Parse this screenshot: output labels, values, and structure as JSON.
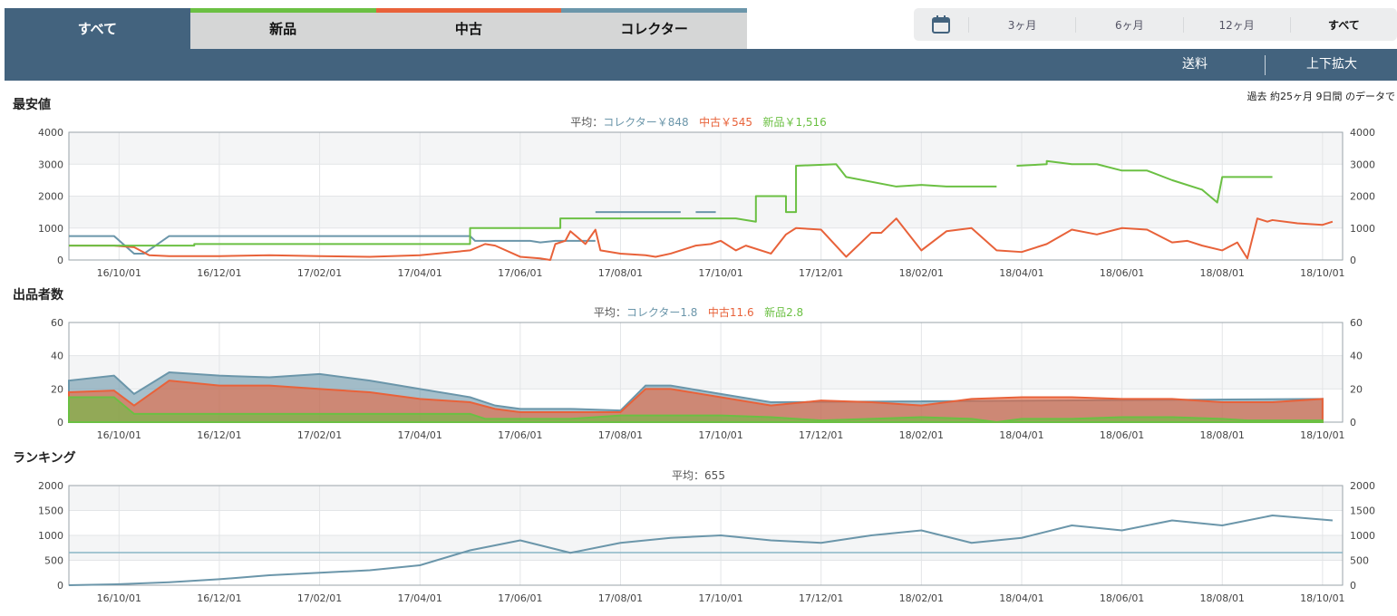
{
  "tabs": [
    {
      "label": "すべて",
      "color": ""
    },
    {
      "label": "新品",
      "color": "#6bc043"
    },
    {
      "label": "中古",
      "color": "#e8623a"
    },
    {
      "label": "コレクター",
      "color": "#6b96aa"
    }
  ],
  "range": {
    "options": [
      "3ヶ月",
      "6ヶ月",
      "12ヶ月",
      "すべて"
    ],
    "selected": "すべて",
    "icon": "calendar-icon"
  },
  "toolbar": {
    "shipping_label": "送料",
    "zoom_label": "上下拡大"
  },
  "period_note": "過去 約25ヶ月 9日間 のデータで",
  "colors": {
    "collector": "#6b96aa",
    "used": "#e8623a",
    "new": "#6bc043",
    "header": "#43637e"
  },
  "sections": {
    "price": {
      "title": "最安値",
      "avg_prefix": "平均：",
      "avg_collector": "コレクター￥848",
      "avg_used": "中古￥545",
      "avg_new": "新品￥1,516"
    },
    "sellers": {
      "title": "出品者数",
      "avg_prefix": "平均：",
      "avg_collector": "コレクター1.8",
      "avg_used": "中古11.6",
      "avg_new": "新品2.8"
    },
    "rank": {
      "title": "ランキング",
      "avg_text": "平均：655"
    }
  },
  "chart_data": [
    {
      "type": "line",
      "id": "price",
      "x_tick_labels": [
        "16/10/01",
        "16/12/01",
        "17/02/01",
        "17/04/01",
        "17/06/01",
        "17/08/01",
        "17/10/01",
        "17/12/01",
        "18/02/01",
        "18/04/01",
        "18/06/01",
        "18/08/01",
        "18/10/01"
      ],
      "ylim": [
        0,
        4000
      ],
      "yticks": [
        0,
        1000,
        2000,
        3000,
        4000
      ],
      "x_range": [
        -1,
        24.4
      ],
      "series": [
        {
          "name": "コレクター",
          "color": "#6b96aa",
          "x": [
            -1,
            -0.1,
            0.3,
            0.5,
            1,
            7,
            7.1,
            8.2,
            8.4,
            8.7,
            9.5,
            9.5
          ],
          "y": [
            750,
            750,
            200,
            200,
            750,
            750,
            600,
            600,
            550,
            600,
            600,
            null
          ]
        },
        {
          "name": "コレクター",
          "color": "#6b96aa",
          "x": [
            9.5,
            11.2
          ],
          "y": [
            1500,
            1500
          ]
        },
        {
          "name": "コレクター",
          "color": "#6b96aa",
          "x": [
            11.5,
            11.9
          ],
          "y": [
            1500,
            1500
          ]
        },
        {
          "name": "中古",
          "color": "#e8623a",
          "x": [
            -1,
            -0.1,
            0.3,
            0.6,
            1,
            2,
            3,
            4,
            5,
            6,
            7,
            7.3,
            7.5,
            8,
            8.4,
            8.6,
            8.7,
            8.9,
            9,
            9.3,
            9.5,
            9.6,
            10,
            10.5,
            10.7,
            11,
            11.5,
            11.8,
            12,
            12.3,
            12.5,
            13,
            13.3,
            13.5,
            14,
            14.5,
            15,
            15.2,
            15.5,
            16,
            16.5,
            17,
            17.5,
            18,
            18.5,
            19,
            19.5,
            20,
            20.5,
            21,
            21.3,
            21.6,
            22,
            22.3,
            22.5,
            22.7,
            22.9,
            23,
            23.5,
            24,
            24.2
          ],
          "y": [
            450,
            450,
            400,
            150,
            120,
            120,
            150,
            120,
            100,
            150,
            300,
            500,
            450,
            100,
            50,
            0,
            500,
            600,
            900,
            500,
            950,
            300,
            200,
            150,
            100,
            200,
            450,
            500,
            600,
            300,
            450,
            200,
            800,
            1000,
            950,
            100,
            850,
            850,
            1300,
            300,
            900,
            1000,
            300,
            250,
            500,
            950,
            800,
            1000,
            950,
            550,
            600,
            450,
            300,
            550,
            50,
            1300,
            1200,
            1250,
            1150,
            1100,
            1200
          ]
        },
        {
          "name": "新品",
          "color": "#6bc043",
          "x": [
            -1,
            1.5,
            1.5,
            7,
            7,
            8.8,
            8.8,
            12.3,
            12.7,
            12.7,
            13.3,
            13.3,
            13.5,
            13.5,
            14.3,
            14.5,
            15.5,
            16,
            16.5,
            17,
            17.5,
            17.7,
            17.9,
            18.5,
            18.5,
            19,
            19.5,
            20,
            20.5,
            21,
            21.6,
            21.9,
            22,
            23
          ],
          "y": [
            450,
            450,
            500,
            500,
            1000,
            1000,
            1300,
            1300,
            1200,
            2000,
            2000,
            1500,
            1500,
            2950,
            3000,
            2600,
            2300,
            2350,
            2300,
            2300,
            2300,
            null,
            2950,
            3000,
            3100,
            3000,
            3000,
            2800,
            2800,
            2500,
            2200,
            1800,
            2600,
            2600
          ]
        }
      ]
    },
    {
      "type": "area",
      "id": "sellers",
      "x_tick_labels": [
        "16/10/01",
        "16/12/01",
        "17/02/01",
        "17/04/01",
        "17/06/01",
        "17/08/01",
        "17/10/01",
        "17/12/01",
        "18/02/01",
        "18/04/01",
        "18/06/01",
        "18/08/01",
        "18/10/01"
      ],
      "ylim": [
        0,
        60
      ],
      "yticks": [
        0,
        20,
        40,
        60
      ],
      "x_range": [
        -1,
        24.4
      ],
      "series": [
        {
          "name": "新品",
          "color": "#6bc043",
          "x": [
            -1,
            -0.1,
            0.3,
            1,
            3,
            5,
            7,
            7.3,
            8,
            9,
            10,
            11,
            12,
            13,
            14,
            15,
            16,
            17,
            17.5,
            18,
            19,
            20,
            21,
            22,
            22.5,
            24
          ],
          "y": [
            15,
            15,
            5,
            5,
            5,
            5,
            5,
            2,
            2,
            2,
            4,
            4,
            4,
            3,
            1,
            2,
            3,
            2,
            0,
            2,
            2,
            3,
            3,
            2,
            1,
            1
          ]
        },
        {
          "name": "中古",
          "color": "#e8623a",
          "x": [
            -1,
            -0.1,
            0.3,
            1,
            2,
            3,
            4,
            5,
            6,
            7,
            7.5,
            8,
            9,
            10,
            10.5,
            11,
            12,
            13,
            14,
            15,
            16,
            17,
            18,
            19,
            20,
            21,
            22,
            23,
            24
          ],
          "y": [
            18,
            19,
            10,
            25,
            22,
            22,
            20,
            18,
            14,
            12,
            8,
            6,
            6,
            6,
            20,
            20,
            15,
            10,
            13,
            12,
            10,
            14,
            15,
            15,
            14,
            14,
            12,
            12,
            14
          ]
        },
        {
          "name": "コレクター",
          "color": "#6b96aa",
          "x": [
            -1,
            -0.1,
            0.3,
            1,
            2,
            3,
            4,
            5,
            6,
            7,
            7.5,
            8,
            9,
            10,
            10.5,
            11,
            12,
            13,
            24
          ],
          "y": [
            25,
            28,
            17,
            30,
            28,
            27,
            29,
            25,
            20,
            15,
            10,
            8,
            8,
            7,
            22,
            22,
            17,
            12,
            14
          ]
        }
      ]
    },
    {
      "type": "line",
      "id": "rank",
      "x_tick_labels": [
        "16/10/01",
        "16/12/01",
        "17/02/01",
        "17/04/01",
        "17/06/01",
        "17/08/01",
        "17/10/01",
        "17/12/01",
        "18/02/01",
        "18/04/01",
        "18/06/01",
        "18/08/01",
        "18/10/01"
      ],
      "ylim": [
        0,
        2000
      ],
      "yticks": [
        0,
        500,
        1000,
        1500,
        2000
      ],
      "x_range": [
        -1,
        24.4
      ],
      "average": 655,
      "series": [
        {
          "name": "ランキング",
          "color": "#6b96aa",
          "x": [
            -1,
            0,
            1,
            2,
            3,
            4,
            5,
            6,
            7,
            8,
            9,
            10,
            11,
            12,
            13,
            14,
            15,
            16,
            17,
            18,
            19,
            20,
            21,
            22,
            23,
            24.2
          ],
          "y": [
            0,
            20,
            60,
            120,
            200,
            250,
            300,
            400,
            700,
            900,
            650,
            850,
            950,
            1000,
            900,
            850,
            1000,
            1100,
            850,
            950,
            1200,
            1100,
            1300,
            1200,
            1400,
            1300
          ]
        }
      ]
    }
  ]
}
